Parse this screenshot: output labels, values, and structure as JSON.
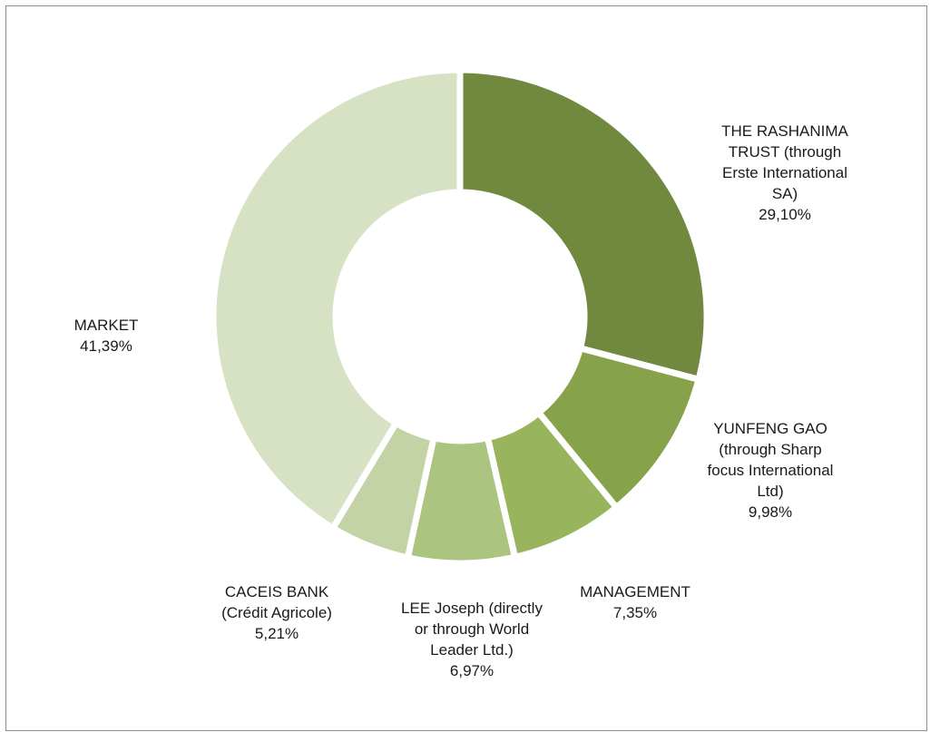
{
  "chart_data": {
    "type": "pie",
    "variant": "doughnut",
    "slices": [
      {
        "label_lines": [
          "THE RASHANIMA",
          "TRUST (through",
          "Erste International",
          "SA)"
        ],
        "pct_label": "29,10%",
        "value": 29.1,
        "color": "#71893f"
      },
      {
        "label_lines": [
          "YUNFENG GAO",
          "(through  Sharp",
          "focus International",
          "Ltd)"
        ],
        "pct_label": "9,98%",
        "value": 9.98,
        "color": "#86a34c"
      },
      {
        "label_lines": [
          "MANAGEMENT"
        ],
        "pct_label": "7,35%",
        "value": 7.35,
        "color": "#98b55e"
      },
      {
        "label_lines": [
          "LEE Joseph (directly",
          "or through World",
          "Leader Ltd.)"
        ],
        "pct_label": "6,97%",
        "value": 6.97,
        "color": "#abc47f"
      },
      {
        "label_lines": [
          "CACEIS BANK",
          "(Crédit Agricole)"
        ],
        "pct_label": "5,21%",
        "value": 5.21,
        "color": "#c3d3a5"
      },
      {
        "label_lines": [
          "MARKET"
        ],
        "pct_label": "41,39%",
        "value": 41.39,
        "color": "#d7e2c5"
      }
    ]
  }
}
